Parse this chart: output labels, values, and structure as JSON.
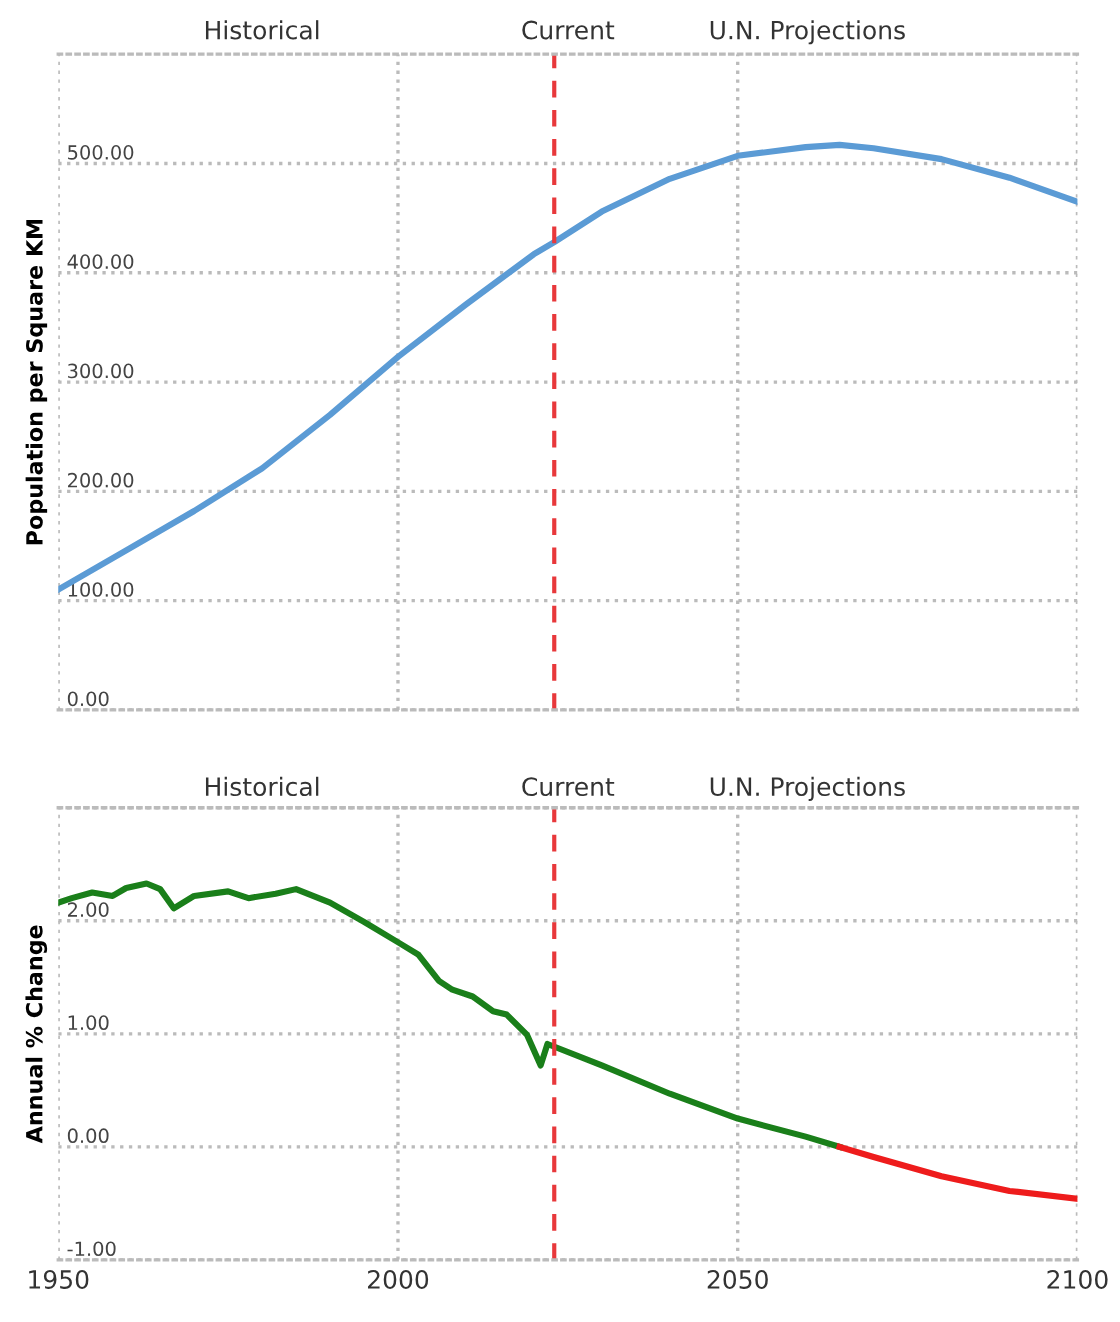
{
  "chart_data": [
    {
      "type": "line",
      "ylabel": "Population per Square KM",
      "annotations": [
        "Historical",
        "Current",
        "U.N. Projections"
      ],
      "series": [
        {
          "color": "#5b9bd5",
          "x": [
            1950,
            1960,
            1970,
            1980,
            1990,
            2000,
            2010,
            2020,
            2023,
            2030,
            2040,
            2050,
            2060,
            2065,
            2070,
            2080,
            2090,
            2100
          ],
          "values": [
            110,
            146,
            182,
            221,
            270,
            323,
            371,
            417,
            428,
            456,
            486,
            507,
            515,
            517,
            514,
            504,
            487,
            465
          ]
        }
      ],
      "xlim": [
        1950,
        2100
      ],
      "xticks": [
        1950,
        2000,
        2050,
        2100
      ],
      "ylim": [
        0,
        600
      ],
      "yticks": [
        {
          "value": 0,
          "label": "0.00"
        },
        {
          "value": 100,
          "label": "100.00"
        },
        {
          "value": 200,
          "label": "200.00"
        },
        {
          "value": 300,
          "label": "300.00"
        },
        {
          "value": 400,
          "label": "400.00"
        },
        {
          "value": 500,
          "label": "500.00"
        }
      ],
      "tick_labels": "y",
      "grid": true,
      "legend": false,
      "line_style": "solid",
      "ref_lines": [
        {
          "axis": "x",
          "value": 2023,
          "color": "#e8383b",
          "line_style": "dashed"
        }
      ]
    },
    {
      "type": "line",
      "ylabel": "Annual % Change",
      "annotations": [
        "Historical",
        "Current",
        "U.N. Projections"
      ],
      "series": [
        {
          "color": "#1a7f1a",
          "x": [
            1950,
            1952,
            1955,
            1958,
            1960,
            1963,
            1965,
            1967,
            1970,
            1975,
            1978,
            1982,
            1985,
            1990,
            1995,
            2000,
            2003,
            2006,
            2008,
            2011,
            2014,
            2016,
            2019,
            2021,
            2022,
            2030,
            2040,
            2050,
            2060,
            2065
          ],
          "values": [
            2.16,
            2.2,
            2.25,
            2.22,
            2.29,
            2.33,
            2.28,
            2.11,
            2.22,
            2.26,
            2.2,
            2.24,
            2.28,
            2.16,
            1.99,
            1.81,
            1.7,
            1.47,
            1.39,
            1.33,
            1.2,
            1.17,
            0.99,
            0.72,
            0.91,
            0.72,
            0.47,
            0.25,
            0.09,
            0
          ]
        },
        {
          "color": "#ee1c1c",
          "x": [
            2065,
            2070,
            2080,
            2090,
            2100
          ],
          "values": [
            0,
            -0.09,
            -0.26,
            -0.39,
            -0.46
          ]
        }
      ],
      "xlim": [
        1950,
        2100
      ],
      "xticks": [
        1950,
        2000,
        2050,
        2100
      ],
      "ylim": [
        -1,
        3
      ],
      "yticks": [
        {
          "value": -1,
          "label": "-1.00"
        },
        {
          "value": 0,
          "label": "0.00"
        },
        {
          "value": 1,
          "label": "1.00"
        },
        {
          "value": 2,
          "label": "2.00"
        },
        {
          "value": 3,
          "label": null
        }
      ],
      "grid": true,
      "legend": false,
      "line_style": "solid",
      "ref_lines": [
        {
          "axis": "x",
          "value": 2023,
          "color": "#e8383b",
          "line_style": "dashed"
        }
      ]
    }
  ]
}
